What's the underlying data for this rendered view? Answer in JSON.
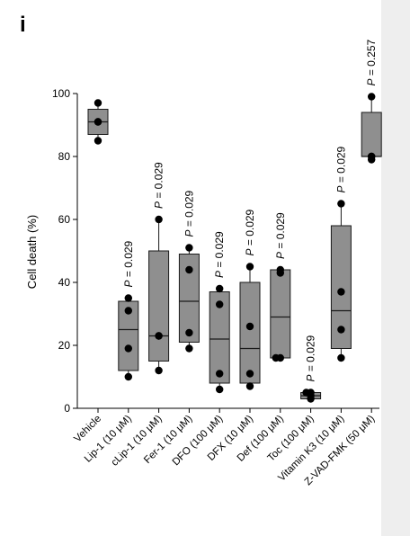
{
  "panel_label": "i",
  "chart_data": {
    "type": "box",
    "ylabel": "Cell death (%)",
    "xlabel": "",
    "ylim": [
      0,
      100
    ],
    "yticks": [
      0,
      20,
      40,
      60,
      80,
      100
    ],
    "categories": [
      "Vehicle",
      "Lip-1 (10 μM)",
      "cLip-1 (10 μM)",
      "Fer-1 (10 μM)",
      "DFO (100 μM)",
      "DFX (10 μM)",
      "Def (100 μM)",
      "Toc (100 μM)",
      "Vitamin K3 (10 μM)",
      "Z-VAD-FMK (50 μM)"
    ],
    "boxes": [
      {
        "min": 85,
        "q1": 87,
        "median": 91,
        "q3": 95,
        "max": 97,
        "points": [
          85,
          91,
          91,
          97
        ],
        "p_label": ""
      },
      {
        "min": 10,
        "q1": 12,
        "median": 25,
        "q3": 34,
        "max": 35,
        "points": [
          10,
          19,
          31,
          35
        ],
        "p_label": "P = 0.029"
      },
      {
        "min": 12,
        "q1": 15,
        "median": 23,
        "q3": 50,
        "max": 60,
        "points": [
          12,
          23,
          23,
          60
        ],
        "p_label": "P = 0.029"
      },
      {
        "min": 19,
        "q1": 21,
        "median": 34,
        "q3": 49,
        "max": 51,
        "points": [
          19,
          24,
          44,
          51
        ],
        "p_label": "P = 0.029"
      },
      {
        "min": 6,
        "q1": 8,
        "median": 22,
        "q3": 37,
        "max": 38,
        "points": [
          6,
          11,
          33,
          38
        ],
        "p_label": "P = 0.029"
      },
      {
        "min": 7,
        "q1": 8,
        "median": 19,
        "q3": 40,
        "max": 45,
        "points": [
          7,
          11,
          26,
          45
        ],
        "p_label": "P = 0.029"
      },
      {
        "min": 16,
        "q1": 16,
        "median": 29,
        "q3": 44,
        "max": 44,
        "points": [
          16,
          16,
          43,
          44
        ],
        "p_label": "P = 0.029"
      },
      {
        "min": 3,
        "q1": 3,
        "median": 4,
        "q3": 5,
        "max": 5,
        "points": [
          3,
          4,
          5,
          5
        ],
        "p_label": "P = 0.029"
      },
      {
        "min": 16,
        "q1": 19,
        "median": 31,
        "q3": 58,
        "max": 65,
        "points": [
          16,
          25,
          37,
          65
        ],
        "p_label": "P = 0.029"
      },
      {
        "min": 79,
        "q1": 80,
        "median": 80,
        "q3": 94,
        "max": 99,
        "points": [
          79,
          80,
          80,
          99
        ],
        "p_label": "P = 0.257"
      }
    ],
    "colors": {
      "box_fill": "#8f8f8f",
      "box_stroke": "#1a1a1a",
      "point": "#000000",
      "axis": "#000000"
    }
  }
}
